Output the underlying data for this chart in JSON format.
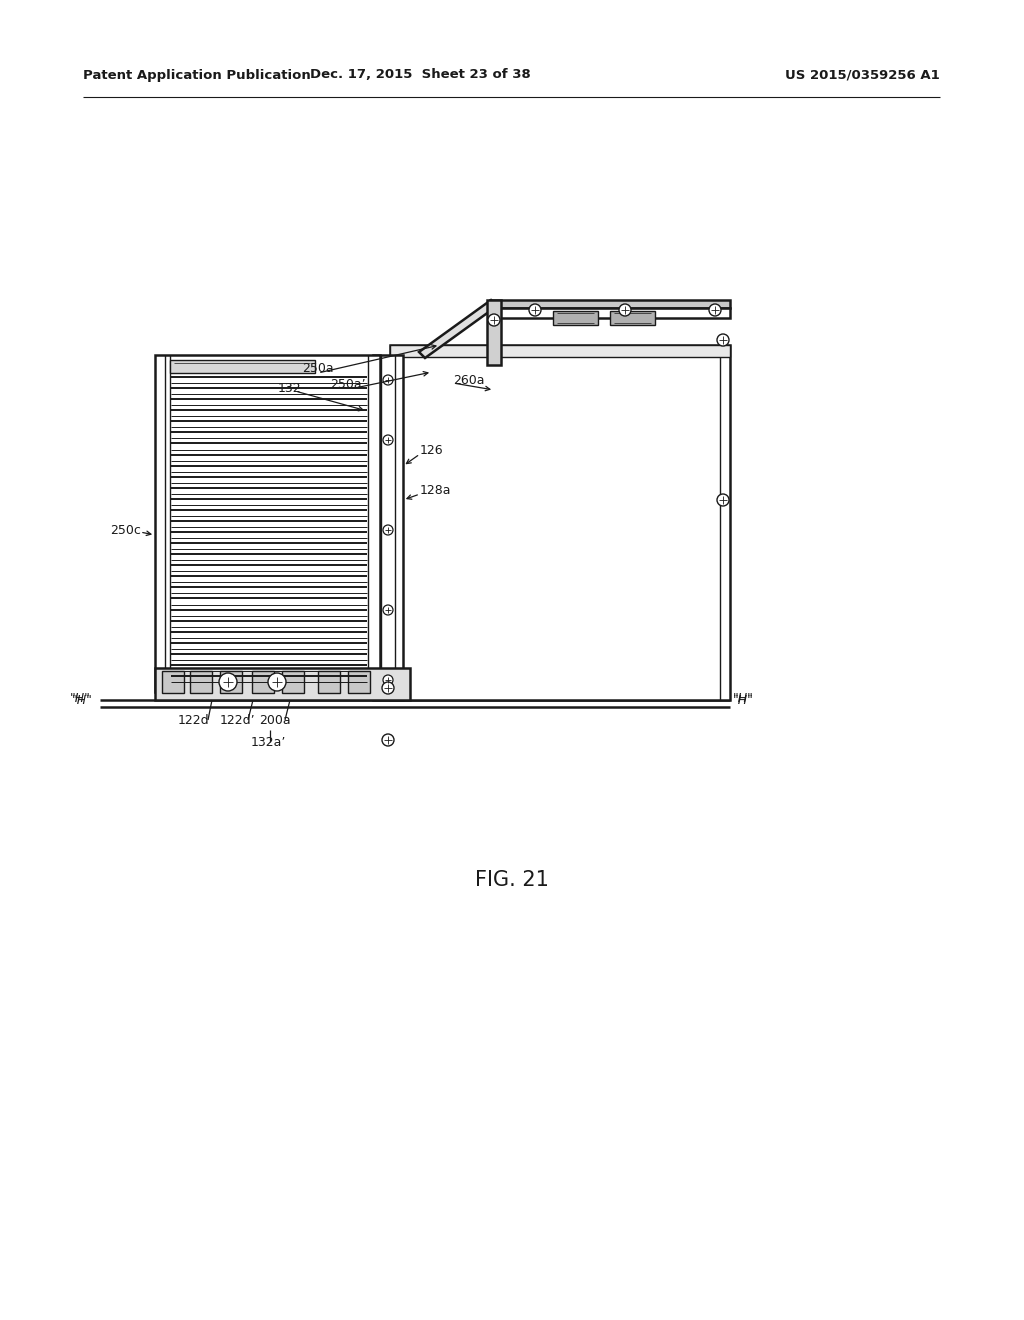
{
  "bg_color": "#ffffff",
  "line_color": "#1a1a1a",
  "header_left": "Patent Application Publication",
  "header_mid": "Dec. 17, 2015  Sheet 23 of 38",
  "header_right": "US 2015/0359256 A1",
  "fig_label": "FIG. 21",
  "lw_main": 1.8,
  "lw_thin": 1.0,
  "lw_thick": 2.5
}
